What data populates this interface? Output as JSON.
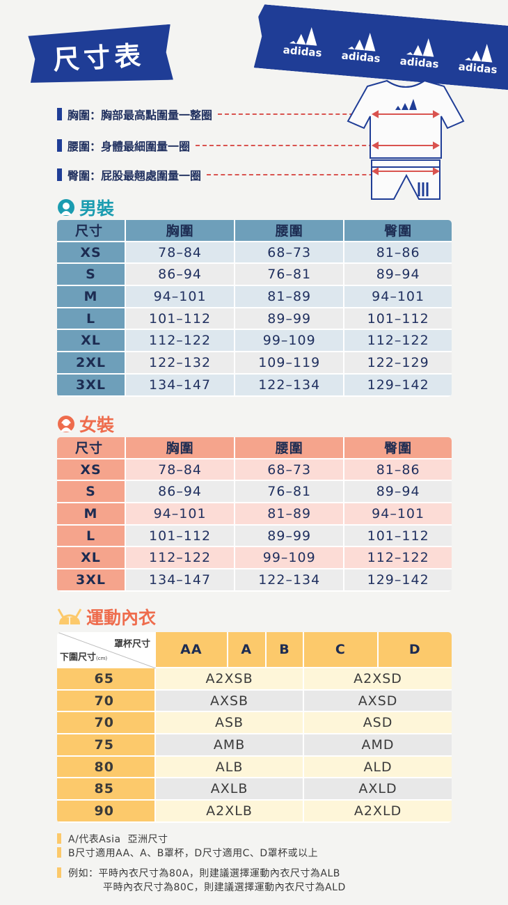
{
  "header": {
    "title": "尺寸表",
    "brand": "adidas"
  },
  "legend": [
    {
      "label": "胸圍：胸部最高點圍量一整圈"
    },
    {
      "label": "腰圍：身體最細圍量一圈"
    },
    {
      "label": "臀圍：屁股最翹處圍量一圈"
    }
  ],
  "men": {
    "heading": "男裝",
    "columns": [
      "尺寸",
      "胸圍",
      "腰圍",
      "臀圍"
    ],
    "rows": [
      [
        "XS",
        "78–84",
        "68–73",
        "81–86"
      ],
      [
        "S",
        "86–94",
        "76–81",
        "89–94"
      ],
      [
        "M",
        "94–101",
        "81–89",
        "94–101"
      ],
      [
        "L",
        "101–112",
        "89–99",
        "101–112"
      ],
      [
        "XL",
        "112–122",
        "99–109",
        "112–122"
      ],
      [
        "2XL",
        "122–132",
        "109–119",
        "122–129"
      ],
      [
        "3XL",
        "134–147",
        "122–134",
        "129–142"
      ]
    ]
  },
  "women": {
    "heading": "女裝",
    "columns": [
      "尺寸",
      "胸圍",
      "腰圍",
      "臀圍"
    ],
    "rows": [
      [
        "XS",
        "78–84",
        "68–73",
        "81–86"
      ],
      [
        "S",
        "86–94",
        "76–81",
        "89–94"
      ],
      [
        "M",
        "94–101",
        "81–89",
        "94–101"
      ],
      [
        "L",
        "101–112",
        "89–99",
        "101–112"
      ],
      [
        "XL",
        "112–122",
        "99–109",
        "112–122"
      ],
      [
        "3XL",
        "134–147",
        "122–134",
        "129–142"
      ]
    ]
  },
  "bra": {
    "heading": "運動內衣",
    "corner_top": "罩杯尺寸",
    "corner_bottom": "下圍尺寸",
    "corner_unit": "(cm)",
    "cups": [
      "AA",
      "A",
      "B",
      "C",
      "D"
    ],
    "rows": [
      {
        "band": "65",
        "ab": "A2XSB",
        "cd": "A2XSD"
      },
      {
        "band": "70",
        "ab": "AXSB",
        "cd": "AXSD"
      },
      {
        "band": "70",
        "ab": "ASB",
        "cd": "ASD"
      },
      {
        "band": "75",
        "ab": "AMB",
        "cd": "AMD"
      },
      {
        "band": "80",
        "ab": "ALB",
        "cd": "ALD"
      },
      {
        "band": "85",
        "ab": "AXLB",
        "cd": "AXLD"
      },
      {
        "band": "90",
        "ab": "A2XLB",
        "cd": "A2XLD"
      }
    ]
  },
  "notes": [
    "A/代表Asia  亞洲尺寸",
    "B尺寸適用AA、A、B罩杯，D尺寸適用C、D罩杯或以上",
    "例如：平時內衣尺寸為80A，則建議選擇運動內衣尺寸為ALB",
    "平時內衣尺寸為80C，則建議選擇運動內衣尺寸為ALD"
  ],
  "colors": {
    "navy": "#1f3d96",
    "men": "#6e9fba",
    "women": "#f5a48c",
    "bra": "#fcc96b",
    "measure_line": "#d9534f"
  },
  "icons": [
    "man-icon",
    "woman-icon",
    "bra-icon",
    "adidas-logo-icon",
    "tshirt-shorts-diagram"
  ]
}
